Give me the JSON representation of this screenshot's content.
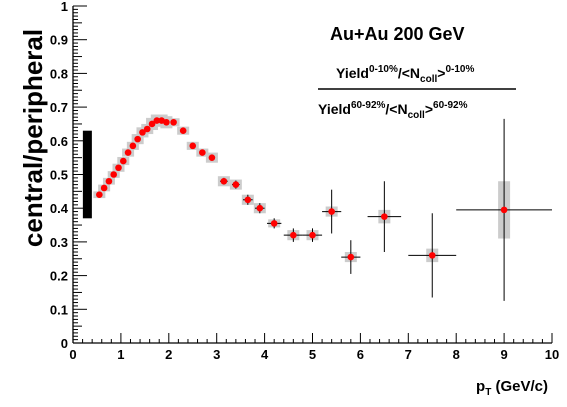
{
  "chart_data": {
    "type": "scatter",
    "title": "",
    "annotation": "Au+Au 200 GeV",
    "ratio_label": {
      "numerator": {
        "base": "Yield",
        "sup1": "0-10%",
        "mid": "/<N",
        "sub": "coll",
        "close": ">",
        "sup2": "0-10%"
      },
      "denominator": {
        "base": "Yield",
        "sup1": "60-92%",
        "mid": "/<N",
        "sub": "coll",
        "close": ">",
        "sup2": "60-92%"
      }
    },
    "xlabel": {
      "main": "p",
      "sub": "T",
      "rest": " (GeV/c)"
    },
    "ylabel": "central/peripheral",
    "xlim": [
      0,
      10
    ],
    "ylim": [
      0,
      1
    ],
    "xticks": [
      0,
      1,
      2,
      3,
      4,
      5,
      6,
      7,
      8,
      9,
      10
    ],
    "yticks": [
      0,
      0.1,
      0.2,
      0.3,
      0.4,
      0.5,
      0.6,
      0.7,
      0.8,
      0.9,
      1
    ],
    "grid": false,
    "normalization_band": {
      "x": 0.3,
      "ymin": 0.37,
      "ymax": 0.63
    },
    "colors": {
      "marker": "#ff0000",
      "syst_box": "#cccccc",
      "errors": "#000000"
    },
    "points": [
      {
        "x": 0.55,
        "y": 0.44,
        "xerr": 0,
        "yerr": 0.005,
        "syst": 0.01
      },
      {
        "x": 0.65,
        "y": 0.46,
        "xerr": 0,
        "yerr": 0.005,
        "syst": 0.01
      },
      {
        "x": 0.75,
        "y": 0.48,
        "xerr": 0,
        "yerr": 0.005,
        "syst": 0.01
      },
      {
        "x": 0.85,
        "y": 0.5,
        "xerr": 0,
        "yerr": 0.005,
        "syst": 0.01
      },
      {
        "x": 0.95,
        "y": 0.52,
        "xerr": 0,
        "yerr": 0.005,
        "syst": 0.012
      },
      {
        "x": 1.05,
        "y": 0.54,
        "xerr": 0,
        "yerr": 0.005,
        "syst": 0.012
      },
      {
        "x": 1.15,
        "y": 0.565,
        "xerr": 0,
        "yerr": 0.005,
        "syst": 0.012
      },
      {
        "x": 1.25,
        "y": 0.585,
        "xerr": 0,
        "yerr": 0.005,
        "syst": 0.012
      },
      {
        "x": 1.35,
        "y": 0.605,
        "xerr": 0,
        "yerr": 0.005,
        "syst": 0.015
      },
      {
        "x": 1.45,
        "y": 0.625,
        "xerr": 0,
        "yerr": 0.005,
        "syst": 0.015
      },
      {
        "x": 1.55,
        "y": 0.635,
        "xerr": 0,
        "yerr": 0.005,
        "syst": 0.015
      },
      {
        "x": 1.65,
        "y": 0.65,
        "xerr": 0,
        "yerr": 0.005,
        "syst": 0.018
      },
      {
        "x": 1.75,
        "y": 0.66,
        "xerr": 0,
        "yerr": 0.005,
        "syst": 0.018
      },
      {
        "x": 1.85,
        "y": 0.66,
        "xerr": 0,
        "yerr": 0.005,
        "syst": 0.018
      },
      {
        "x": 1.95,
        "y": 0.655,
        "xerr": 0,
        "yerr": 0.005,
        "syst": 0.018
      },
      {
        "x": 2.1,
        "y": 0.655,
        "xerr": 0.05,
        "yerr": 0.006,
        "syst": 0.012
      },
      {
        "x": 2.3,
        "y": 0.63,
        "xerr": 0.05,
        "yerr": 0.006,
        "syst": 0.012
      },
      {
        "x": 2.5,
        "y": 0.585,
        "xerr": 0.05,
        "yerr": 0.006,
        "syst": 0.012
      },
      {
        "x": 2.7,
        "y": 0.565,
        "xerr": 0.05,
        "yerr": 0.006,
        "syst": 0.012
      },
      {
        "x": 2.9,
        "y": 0.55,
        "xerr": 0.05,
        "yerr": 0.006,
        "syst": 0.015
      },
      {
        "x": 3.15,
        "y": 0.48,
        "xerr": 0.08,
        "yerr": 0.01,
        "syst": 0.015
      },
      {
        "x": 3.4,
        "y": 0.47,
        "xerr": 0.08,
        "yerr": 0.012,
        "syst": 0.015
      },
      {
        "x": 3.65,
        "y": 0.425,
        "xerr": 0.1,
        "yerr": 0.015,
        "syst": 0.015
      },
      {
        "x": 3.9,
        "y": 0.4,
        "xerr": 0.1,
        "yerr": 0.015,
        "syst": 0.015
      },
      {
        "x": 4.2,
        "y": 0.355,
        "xerr": 0.15,
        "yerr": 0.015,
        "syst": 0.012
      },
      {
        "x": 4.6,
        "y": 0.32,
        "xerr": 0.2,
        "yerr": 0.02,
        "syst": 0.015
      },
      {
        "x": 5.0,
        "y": 0.32,
        "xerr": 0.2,
        "yerr": 0.02,
        "syst": 0.015
      },
      {
        "x": 5.4,
        "y": 0.39,
        "xerr": 0.2,
        "yerr": 0.065,
        "syst": 0.015
      },
      {
        "x": 5.8,
        "y": 0.255,
        "xerr": 0.2,
        "yerr": 0.05,
        "syst": 0.015
      },
      {
        "x": 6.5,
        "y": 0.375,
        "xerr": 0.35,
        "yerr": 0.105,
        "syst": 0.02
      },
      {
        "x": 7.5,
        "y": 0.26,
        "xerr": 0.5,
        "yerr": 0.125,
        "syst": 0.02
      },
      {
        "x": 9.0,
        "y": 0.395,
        "xerr": 1.0,
        "yerr": 0.27,
        "syst": 0.085
      }
    ]
  }
}
